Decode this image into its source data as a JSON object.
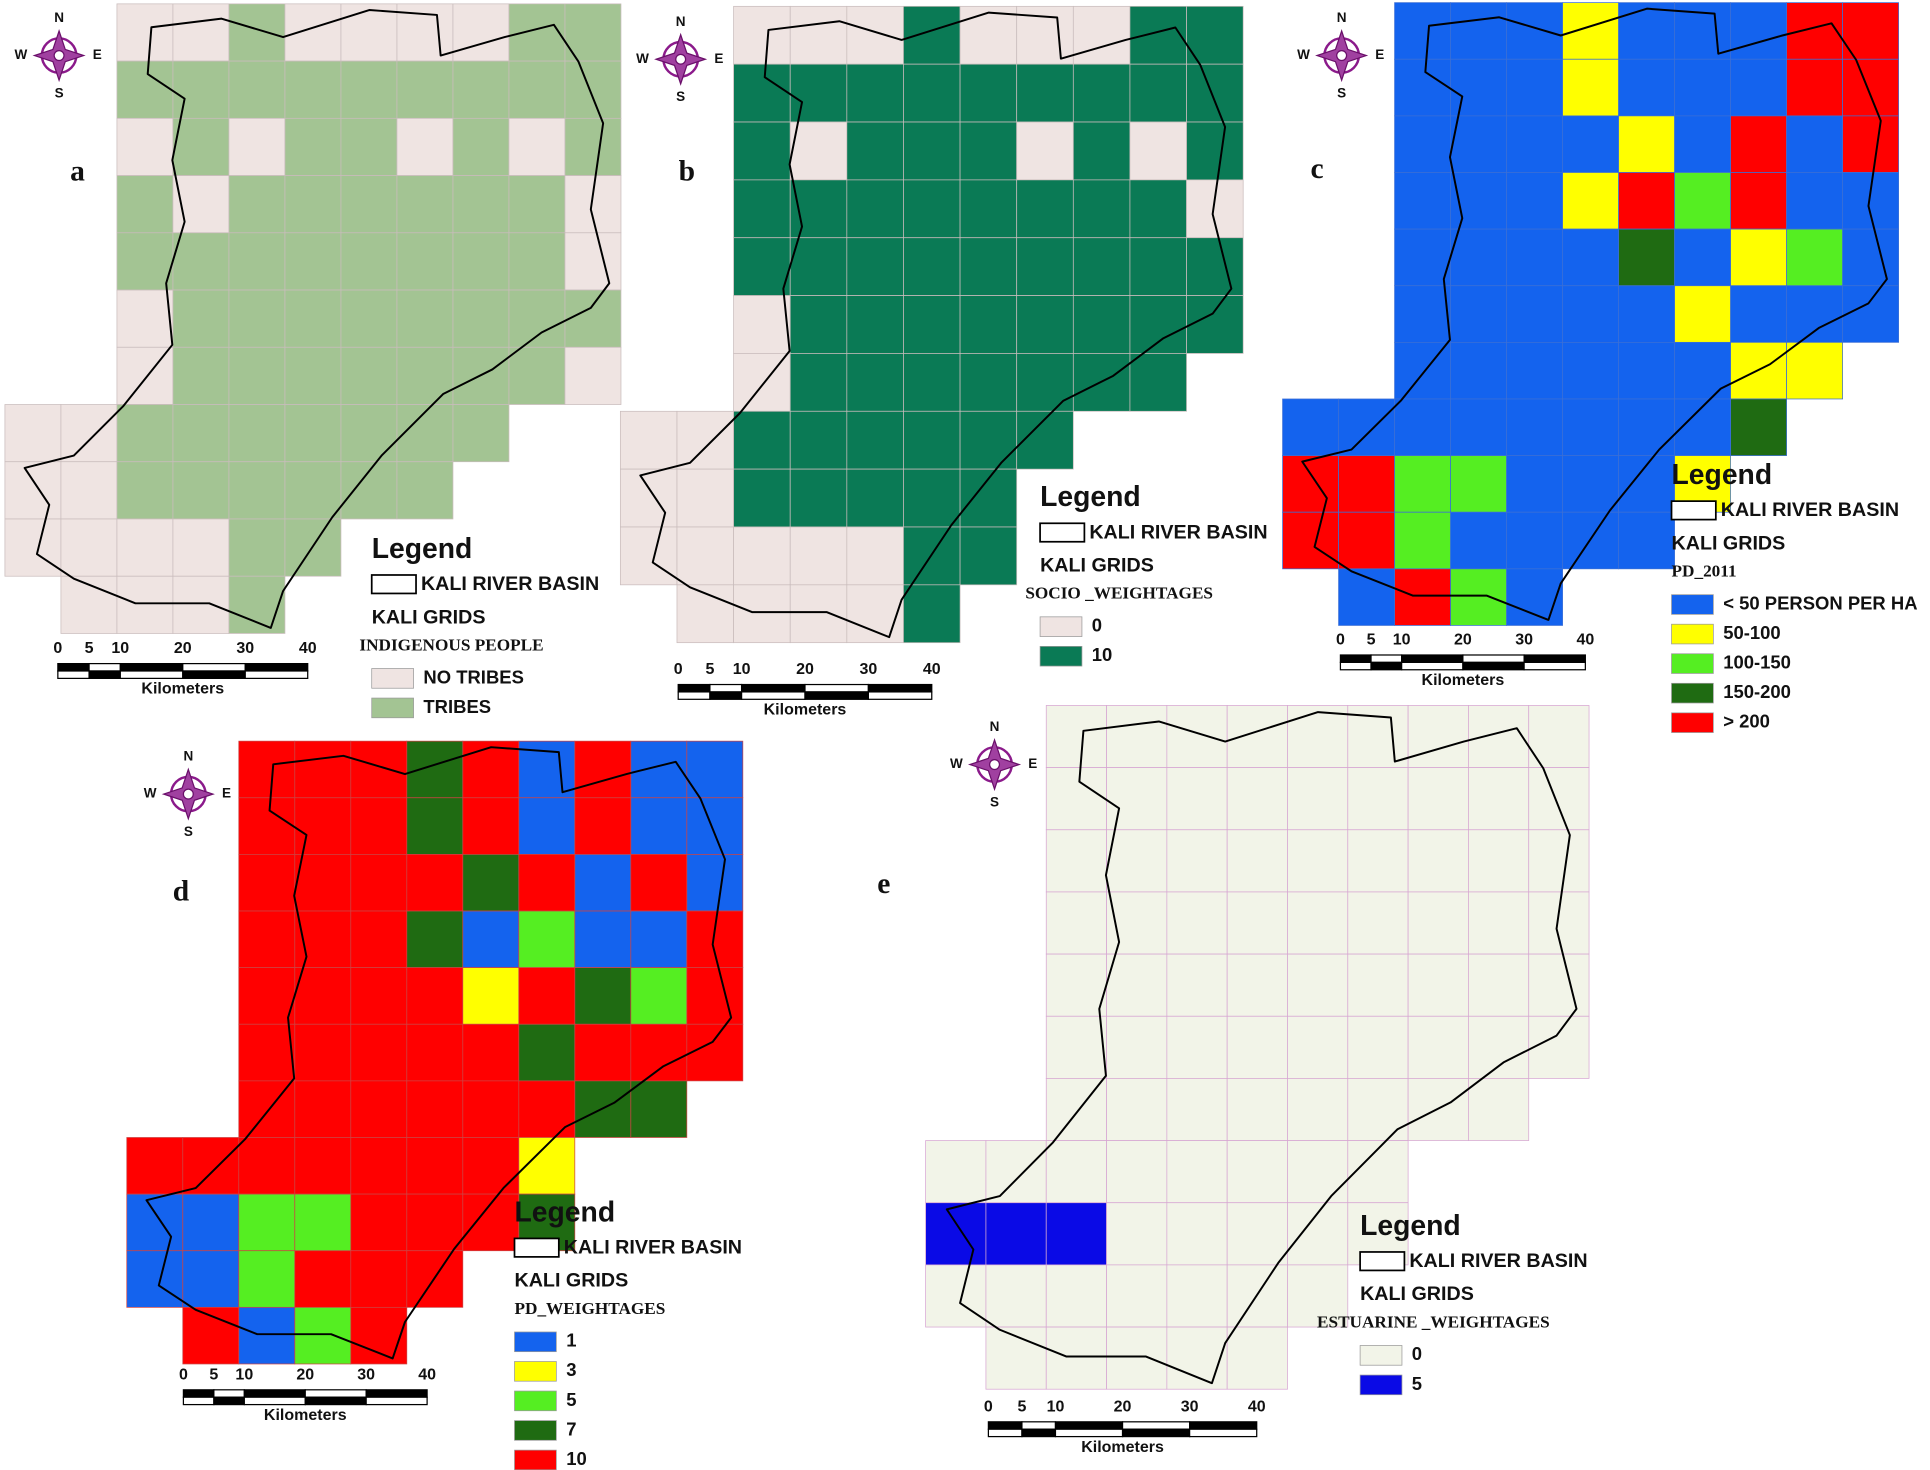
{
  "compass": {
    "north": "N",
    "south": "S",
    "east": "E",
    "west": "W"
  },
  "panels": [
    {
      "label": "a",
      "legend": {
        "title": "Legend",
        "basin": "KALI RIVER BASIN",
        "grids": "KALI GRIDS",
        "field": "INDIGENOUS PEOPLE",
        "classes": [
          {
            "label": "NO TRIBES",
            "color": "#efe4e2"
          },
          {
            "label": "TRIBES",
            "color": "#a3c493"
          }
        ]
      },
      "scale_bar": {
        "ticks": [
          0,
          5,
          10,
          20,
          30,
          40
        ],
        "unit": "Kilometers"
      }
    },
    {
      "label": "b",
      "legend": {
        "title": "Legend",
        "basin": "KALI RIVER BASIN",
        "grids": "KALI GRIDS",
        "field": "SOCIO _WEIGHTAGES",
        "classes": [
          {
            "label": "0",
            "color": "#efe4e2"
          },
          {
            "label": "10",
            "color": "#0a7a55"
          }
        ]
      },
      "scale_bar": {
        "ticks": [
          0,
          5,
          10,
          20,
          30,
          40
        ],
        "unit": "Kilometers"
      }
    },
    {
      "label": "c",
      "legend": {
        "title": "Legend",
        "basin": "KALI RIVER BASIN",
        "grids": "KALI GRIDS",
        "field": "PD_2011",
        "classes": [
          {
            "label": "< 50 PERSON PER HA",
            "color": "#1463ee"
          },
          {
            "label": "50-100",
            "color": "#ffff00"
          },
          {
            "label": "100-150",
            "color": "#55ee22"
          },
          {
            "label": "150-200",
            "color": "#1f6b12"
          },
          {
            "label": "> 200",
            "color": "#ff0000"
          }
        ]
      },
      "scale_bar": {
        "ticks": [
          0,
          5,
          10,
          20,
          30,
          40
        ],
        "unit": "Kilometers"
      }
    },
    {
      "label": "d",
      "legend": {
        "title": "Legend",
        "basin": "KALI RIVER BASIN",
        "grids": "KALI GRIDS",
        "field": "PD_WEIGHTAGES",
        "classes": [
          {
            "label": "1",
            "color": "#1463ee"
          },
          {
            "label": "3",
            "color": "#ffff00"
          },
          {
            "label": "5",
            "color": "#55ee22"
          },
          {
            "label": "7",
            "color": "#1f6b12"
          },
          {
            "label": "10",
            "color": "#ff0000"
          }
        ]
      },
      "scale_bar": {
        "ticks": [
          0,
          5,
          10,
          20,
          30,
          40
        ],
        "unit": "Kilometers"
      }
    },
    {
      "label": "e",
      "legend": {
        "title": "Legend",
        "basin": "KALI RIVER BASIN",
        "grids": "KALI GRIDS",
        "field": "ESTUARINE _WEIGHTAGES",
        "classes": [
          {
            "label": "0",
            "color": "#f2f4e8"
          },
          {
            "label": "5",
            "color": "#0a0ae6"
          }
        ]
      },
      "scale_bar": {
        "ticks": [
          0,
          5,
          10,
          20,
          30,
          40
        ],
        "unit": "Kilometers"
      }
    }
  ]
}
